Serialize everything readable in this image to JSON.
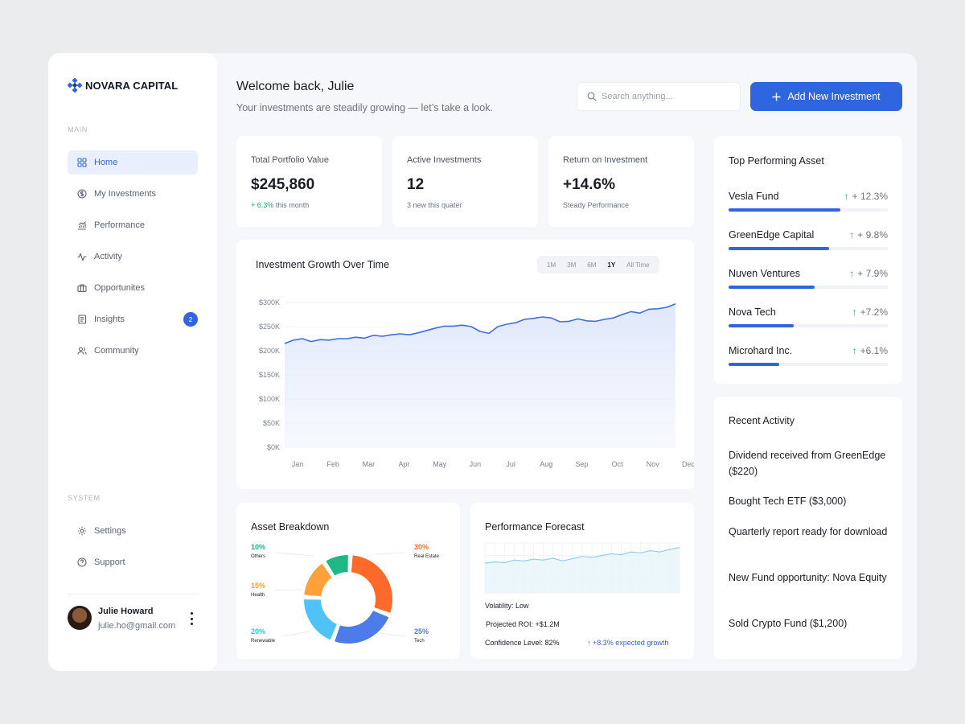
{
  "brand": {
    "name": "NOVARA CAPITAL",
    "color": "#2f66e0"
  },
  "sidebar": {
    "main_label": "MAIN",
    "items": [
      {
        "label": "Home",
        "icon": "grid-icon",
        "active": true
      },
      {
        "label": "My Investments",
        "icon": "dollar-circle-icon"
      },
      {
        "label": "Performance",
        "icon": "chart-icon"
      },
      {
        "label": "Activity",
        "icon": "pulse-icon"
      },
      {
        "label": "Opportunites",
        "icon": "briefcase-icon"
      },
      {
        "label": "Insights",
        "icon": "document-icon",
        "badge": "2"
      },
      {
        "label": "Community",
        "icon": "users-icon"
      }
    ],
    "system_label": "SYSTEM",
    "system_items": [
      {
        "label": "Settings",
        "icon": "gear-icon"
      },
      {
        "label": "Support",
        "icon": "help-circle-icon"
      }
    ],
    "user": {
      "name": "Julie Howard",
      "email": "julie.ho@gmail.com"
    }
  },
  "header": {
    "title": "Welcome back, Julie",
    "subtitle": "Your investments are steadily growing — let’s take a look.",
    "search_placeholder": "Search anything...",
    "add_button": "Add New Investment"
  },
  "kpis": [
    {
      "label": "Total Portfolio Value",
      "value": "$245,860",
      "note_highlight": "+ 6.3%",
      "note": " this month"
    },
    {
      "label": "Active Investments",
      "value": "12",
      "note_highlight": "",
      "note": "3 new this quater"
    },
    {
      "label": "Return on Investment",
      "value": "+14.6%",
      "note_highlight": "",
      "note": "Steady Performance"
    }
  ],
  "growth": {
    "title": "Investment Growth Over Time",
    "ranges": [
      "1M",
      "3M",
      "6M",
      "1Y",
      "All Time"
    ],
    "selected_range": "1Y"
  },
  "chart_data": [
    {
      "type": "area",
      "title": "Investment Growth Over Time",
      "categories": [
        "Jan",
        "Feb",
        "Mar",
        "Apr",
        "May",
        "Jun",
        "Jul",
        "Aug",
        "Sep",
        "Oct",
        "Nov",
        "Dec"
      ],
      "y_ticks": [
        "$0K",
        "$50K",
        "$100K",
        "$150K",
        "$200K",
        "$250K",
        "$300K"
      ],
      "ylim": [
        0,
        300000
      ],
      "grid": true,
      "x": [
        0,
        0.25,
        0.5,
        0.75,
        1,
        1.25,
        1.5,
        1.75,
        2,
        2.25,
        2.5,
        2.75,
        3,
        3.25,
        3.5,
        3.75,
        4,
        4.25,
        4.5,
        4.75,
        5,
        5.25,
        5.5,
        5.75,
        6,
        6.25,
        6.5,
        6.75,
        7,
        7.25,
        7.5,
        7.75,
        8,
        8.25,
        8.5,
        8.75,
        9,
        9.25,
        9.5,
        9.75,
        10,
        10.25,
        10.5,
        10.75,
        11
      ],
      "values": [
        215000,
        222000,
        225000,
        219000,
        223000,
        222000,
        225000,
        225000,
        228000,
        226000,
        232000,
        230000,
        233000,
        235000,
        233000,
        237000,
        242000,
        247000,
        251000,
        251000,
        253000,
        250000,
        240000,
        236000,
        250000,
        255000,
        258000,
        265000,
        267000,
        270000,
        268000,
        260000,
        261000,
        266000,
        262000,
        261000,
        265000,
        268000,
        275000,
        281000,
        278000,
        286000,
        287000,
        290000,
        297000
      ]
    },
    {
      "type": "pie",
      "title": "Asset Breakdown",
      "categories": [
        "Real Estate",
        "Tech",
        "Renewable",
        "Health",
        "Others"
      ],
      "values": [
        30,
        25,
        20,
        15,
        10
      ],
      "labels": [
        "30%",
        "25%",
        "20%",
        "15%",
        "10%"
      ],
      "colors": [
        "#ff6a2b",
        "#4c7bea",
        "#4fc3f7",
        "#ffa13a",
        "#1fb784"
      ]
    },
    {
      "type": "area",
      "title": "Performance Forecast",
      "x": [
        0,
        1,
        2,
        3,
        4,
        5,
        6,
        7,
        8,
        9,
        10,
        11,
        12,
        13,
        14,
        15,
        16,
        17,
        18,
        19,
        20
      ],
      "values": [
        0.55,
        0.58,
        0.56,
        0.62,
        0.6,
        0.64,
        0.62,
        0.66,
        0.6,
        0.65,
        0.7,
        0.68,
        0.72,
        0.76,
        0.74,
        0.8,
        0.78,
        0.83,
        0.8,
        0.86,
        0.9
      ],
      "grid": true
    }
  ],
  "asset": {
    "title": "Asset Breakdown",
    "slices": [
      {
        "pct": "30%",
        "label": "Real Estate",
        "color": "#ff6a2b"
      },
      {
        "pct": "25%",
        "label": "Tech",
        "color": "#4c7bea"
      },
      {
        "pct": "20%",
        "label": "Renewable",
        "color": "#30c7d9"
      },
      {
        "pct": "15%",
        "label": "Health",
        "color": "#ff9f2d"
      },
      {
        "pct": "10%",
        "label": "Others",
        "color": "#1fb784"
      }
    ]
  },
  "forecast": {
    "title": "Performance Forecast",
    "volatility": "Volatility: Low",
    "projected": "Projected ROI: +$1.2M",
    "confidence": "Confidence Level: 82%",
    "growth": "+8.3% expected growth"
  },
  "top_assets": {
    "title": "Top Performing Asset",
    "items": [
      {
        "name": "Vesla Fund",
        "change": "+ 12.3%",
        "level": 0.7
      },
      {
        "name": "GreenEdge Capital",
        "change": "+ 9.8%",
        "level": 0.63
      },
      {
        "name": "Nuven Ventures",
        "change": "+ 7.9%",
        "level": 0.54
      },
      {
        "name": "Nova Tech",
        "change": "+7.2%",
        "level": 0.41
      },
      {
        "name": "Microhard Inc.",
        "change": "+6.1%",
        "level": 0.32
      }
    ]
  },
  "recent": {
    "title": "Recent Activity",
    "items": [
      "Dividend received from GreenEdge ($220)",
      "Bought Tech ETF ($3,000)",
      "Quarterly report ready for download",
      "New Fund opportunity: Nova Equity",
      "Sold Crypto Fund ($1,200)"
    ]
  }
}
